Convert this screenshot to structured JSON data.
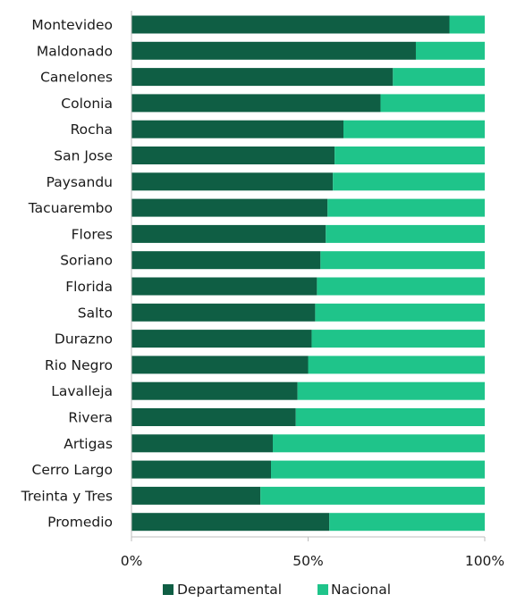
{
  "chart_data": {
    "type": "bar",
    "orientation": "horizontal",
    "stacked": true,
    "percent": true,
    "categories": [
      "Montevideo",
      "Maldonado",
      "Canelones",
      "Colonia",
      "Rocha",
      "San Jose",
      "Paysandu",
      "Tacuarembo",
      "Flores",
      "Soriano",
      "Florida",
      "Salto",
      "Durazno",
      "Rio Negro",
      "Lavalleja",
      "Rivera",
      "Artigas",
      "Cerro Largo",
      "Treinta y Tres",
      "Promedio"
    ],
    "series": [
      {
        "name": "Departamental",
        "color": "#0f5e44",
        "values": [
          90,
          80.5,
          74,
          70.5,
          60,
          57.5,
          57,
          55.5,
          55,
          53.5,
          52.5,
          52,
          51,
          50,
          47,
          46.5,
          40,
          39.5,
          36.5,
          56
        ]
      },
      {
        "name": "Nacional",
        "color": "#1fc48a",
        "values": [
          10,
          19.5,
          26,
          29.5,
          40,
          42.5,
          43,
          44.5,
          45,
          46.5,
          47.5,
          48,
          49,
          50,
          53,
          53.5,
          60,
          60.5,
          63.5,
          44
        ]
      }
    ],
    "xlim": [
      0,
      100
    ],
    "xticks": [
      0,
      50,
      100
    ],
    "xtick_labels": [
      "0%",
      "50%",
      "100%"
    ],
    "legend_position": "bottom-center",
    "grid": false
  }
}
